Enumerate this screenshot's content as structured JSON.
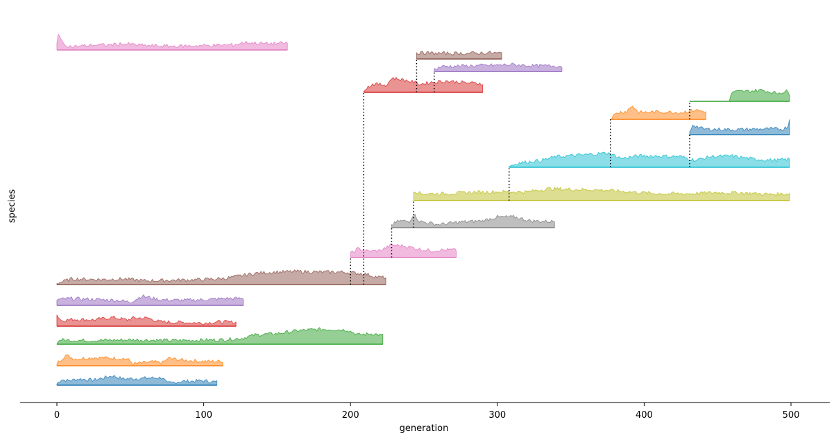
{
  "chart_data": {
    "type": "area",
    "title": "",
    "xlabel": "generation",
    "ylabel": "species",
    "xlim": [
      -25,
      525
    ],
    "x_ticks": [
      0,
      100,
      200,
      300,
      400,
      500
    ],
    "x_tick_labels": [
      "0",
      "100",
      "200",
      "300",
      "400",
      "500"
    ],
    "grid": false,
    "legend": "none",
    "series": [
      {
        "row": 0,
        "start": 0,
        "end": 109,
        "color": "#1f77b4",
        "profile": [
          [
            0,
            0.1
          ],
          [
            3,
            0.45
          ],
          [
            8,
            0.35
          ],
          [
            15,
            0.5
          ],
          [
            25,
            0.4
          ],
          [
            38,
            0.75
          ],
          [
            45,
            0.5
          ],
          [
            58,
            0.55
          ],
          [
            72,
            0.6
          ],
          [
            75,
            0.15
          ],
          [
            85,
            0.3
          ],
          [
            100,
            0.35
          ],
          [
            109,
            0.25
          ]
        ]
      },
      {
        "row": 1,
        "start": 0,
        "end": 113,
        "color": "#ff7f0e",
        "profile": [
          [
            0,
            0.2
          ],
          [
            6,
            0.85
          ],
          [
            12,
            0.55
          ],
          [
            25,
            0.65
          ],
          [
            40,
            0.6
          ],
          [
            48,
            0.55
          ],
          [
            52,
            0.15
          ],
          [
            65,
            0.3
          ],
          [
            72,
            0.25
          ],
          [
            76,
            0.6
          ],
          [
            85,
            0.45
          ],
          [
            100,
            0.35
          ],
          [
            113,
            0.35
          ]
        ]
      },
      {
        "row": 2,
        "start": 0,
        "end": 122,
        "color": "#d62728",
        "profile": [
          [
            0,
            0.9
          ],
          [
            3,
            0.45
          ],
          [
            12,
            0.55
          ],
          [
            25,
            0.5
          ],
          [
            38,
            0.7
          ],
          [
            48,
            0.5
          ],
          [
            52,
            0.65
          ],
          [
            62,
            0.65
          ],
          [
            70,
            0.35
          ],
          [
            85,
            0.3
          ],
          [
            100,
            0.25
          ],
          [
            112,
            0.35
          ],
          [
            122,
            0.3
          ]
        ]
      },
      {
        "row": 3,
        "start": 0,
        "end": 222,
        "color": "#2ca02c",
        "profile": [
          [
            0,
            0.05
          ],
          [
            2,
            0.35
          ],
          [
            20,
            0.3
          ],
          [
            50,
            0.35
          ],
          [
            80,
            0.3
          ],
          [
            110,
            0.35
          ],
          [
            125,
            0.45
          ],
          [
            135,
            0.75
          ],
          [
            150,
            0.85
          ],
          [
            165,
            1.1
          ],
          [
            180,
            1.2
          ],
          [
            198,
            1.15
          ],
          [
            205,
            0.75
          ],
          [
            215,
            0.85
          ],
          [
            222,
            0.7
          ]
        ]
      },
      {
        "row": 4,
        "start": 0,
        "end": 127,
        "color": "#9467bd",
        "profile": [
          [
            0,
            0.45
          ],
          [
            8,
            0.55
          ],
          [
            20,
            0.5
          ],
          [
            30,
            0.45
          ],
          [
            42,
            0.4
          ],
          [
            50,
            0.25
          ],
          [
            58,
            0.75
          ],
          [
            70,
            0.45
          ],
          [
            85,
            0.4
          ],
          [
            100,
            0.45
          ],
          [
            115,
            0.55
          ],
          [
            127,
            0.55
          ]
        ]
      },
      {
        "row": 5,
        "start": 0,
        "end": 224,
        "color": "#8c564b",
        "profile": [
          [
            0,
            0.1
          ],
          [
            10,
            0.45
          ],
          [
            30,
            0.4
          ],
          [
            45,
            0.45
          ],
          [
            60,
            0.3
          ],
          [
            80,
            0.35
          ],
          [
            100,
            0.4
          ],
          [
            115,
            0.5
          ],
          [
            125,
            0.7
          ],
          [
            135,
            0.9
          ],
          [
            150,
            1.0
          ],
          [
            165,
            1.05
          ],
          [
            180,
            1.0
          ],
          [
            195,
            1.0
          ],
          [
            210,
            0.85
          ],
          [
            218,
            0.6
          ],
          [
            224,
            0.55
          ]
        ]
      },
      {
        "row": 6,
        "start": 200,
        "end": 272,
        "color": "#e377c2",
        "profile": [
          [
            200,
            0.3
          ],
          [
            205,
            0.7
          ],
          [
            212,
            0.5
          ],
          [
            220,
            0.55
          ],
          [
            228,
            1.0
          ],
          [
            238,
            0.9
          ],
          [
            245,
            0.7
          ],
          [
            255,
            0.55
          ],
          [
            265,
            0.6
          ],
          [
            272,
            0.6
          ]
        ]
      },
      {
        "row": 7,
        "start": 228,
        "end": 339,
        "color": "#7f7f7f",
        "profile": [
          [
            228,
            0.2
          ],
          [
            233,
            0.55
          ],
          [
            240,
            0.5
          ],
          [
            243,
            1.1
          ],
          [
            247,
            0.5
          ],
          [
            260,
            0.25
          ],
          [
            275,
            0.45
          ],
          [
            290,
            0.55
          ],
          [
            300,
            0.85
          ],
          [
            312,
            0.85
          ],
          [
            322,
            0.55
          ],
          [
            332,
            0.5
          ],
          [
            339,
            0.5
          ]
        ]
      },
      {
        "row": 8,
        "start": 243,
        "end": 499,
        "color": "#bcbd22",
        "profile": [
          [
            243,
            0.8
          ],
          [
            248,
            0.55
          ],
          [
            265,
            0.55
          ],
          [
            280,
            0.65
          ],
          [
            300,
            0.7
          ],
          [
            320,
            0.7
          ],
          [
            335,
            0.95
          ],
          [
            350,
            0.9
          ],
          [
            370,
            0.85
          ],
          [
            390,
            0.7
          ],
          [
            410,
            0.55
          ],
          [
            430,
            0.55
          ],
          [
            450,
            0.65
          ],
          [
            470,
            0.6
          ],
          [
            485,
            0.5
          ],
          [
            499,
            0.55
          ]
        ]
      },
      {
        "row": 9,
        "start": 308,
        "end": 499,
        "color": "#17becf",
        "profile": [
          [
            308,
            0.1
          ],
          [
            315,
            0.35
          ],
          [
            330,
            0.55
          ],
          [
            340,
            0.85
          ],
          [
            360,
            1.0
          ],
          [
            375,
            1.15
          ],
          [
            385,
            0.7
          ],
          [
            395,
            0.9
          ],
          [
            410,
            0.9
          ],
          [
            425,
            0.85
          ],
          [
            435,
            0.55
          ],
          [
            445,
            0.85
          ],
          [
            460,
            0.9
          ],
          [
            475,
            0.65
          ],
          [
            490,
            0.55
          ],
          [
            499,
            0.65
          ]
        ]
      },
      {
        "row": 10,
        "start": 431,
        "end": 499,
        "color": "#1f77b4",
        "profile": [
          [
            431,
            0.15
          ],
          [
            433,
            0.8
          ],
          [
            440,
            0.45
          ],
          [
            460,
            0.4
          ],
          [
            480,
            0.45
          ],
          [
            495,
            0.45
          ],
          [
            498,
            0.7
          ],
          [
            499,
            1.2
          ]
        ]
      },
      {
        "row": 11,
        "start": 377,
        "end": 442,
        "color": "#ff7f0e",
        "profile": [
          [
            377,
            0.1
          ],
          [
            382,
            0.55
          ],
          [
            388,
            0.65
          ],
          [
            392,
            1.1
          ],
          [
            396,
            0.55
          ],
          [
            410,
            0.6
          ],
          [
            425,
            0.55
          ],
          [
            435,
            0.75
          ],
          [
            442,
            0.6
          ]
        ]
      },
      {
        "row": 12,
        "start": 431,
        "end": 499,
        "color": "#2ca02c",
        "profile": [
          [
            431,
            0.0
          ],
          [
            458,
            0.0
          ],
          [
            460,
            0.75
          ],
          [
            470,
            0.8
          ],
          [
            480,
            0.9
          ],
          [
            490,
            0.65
          ],
          [
            497,
            0.8
          ],
          [
            499,
            0.6
          ]
        ]
      },
      {
        "row": 13,
        "start": 209,
        "end": 290,
        "color": "#d62728",
        "profile": [
          [
            209,
            0.2
          ],
          [
            215,
            0.65
          ],
          [
            225,
            0.6
          ],
          [
            228,
            1.15
          ],
          [
            240,
            0.9
          ],
          [
            248,
            0.65
          ],
          [
            255,
            0.8
          ],
          [
            265,
            0.9
          ],
          [
            280,
            0.75
          ],
          [
            290,
            0.7
          ]
        ]
      },
      {
        "row": 14,
        "start": 257,
        "end": 344,
        "color": "#9467bd",
        "profile": [
          [
            257,
            0.15
          ],
          [
            262,
            0.4
          ],
          [
            280,
            0.45
          ],
          [
            300,
            0.5
          ],
          [
            310,
            0.55
          ],
          [
            325,
            0.45
          ],
          [
            340,
            0.45
          ],
          [
            344,
            0.4
          ]
        ]
      },
      {
        "row": 15,
        "start": 245,
        "end": 303,
        "color": "#8c564b",
        "profile": [
          [
            245,
            0.5
          ],
          [
            260,
            0.45
          ],
          [
            280,
            0.45
          ],
          [
            295,
            0.5
          ],
          [
            303,
            0.45
          ]
        ]
      },
      {
        "row": 16,
        "start": 0,
        "end": 157,
        "color": "#e377c2",
        "profile": [
          [
            0,
            0.5
          ],
          [
            1,
            1.4
          ],
          [
            4,
            0.5
          ],
          [
            10,
            0.25
          ],
          [
            25,
            0.4
          ],
          [
            35,
            0.4
          ],
          [
            45,
            0.5
          ],
          [
            60,
            0.35
          ],
          [
            80,
            0.3
          ],
          [
            100,
            0.35
          ],
          [
            120,
            0.4
          ],
          [
            128,
            0.6
          ],
          [
            135,
            0.55
          ],
          [
            145,
            0.5
          ],
          [
            157,
            0.55
          ]
        ]
      }
    ],
    "branches": [
      {
        "x": 200,
        "from_row": 5,
        "to_row": 6
      },
      {
        "x": 209,
        "from_row": 5,
        "to_row": 13
      },
      {
        "x": 228,
        "from_row": 6,
        "to_row": 7
      },
      {
        "x": 243,
        "from_row": 7,
        "to_row": 8
      },
      {
        "x": 308,
        "from_row": 8,
        "to_row": 9
      },
      {
        "x": 377,
        "from_row": 9,
        "to_row": 11
      },
      {
        "x": 431,
        "from_row": 9,
        "to_row": 10
      },
      {
        "x": 431,
        "from_row": 11,
        "to_row": 12
      },
      {
        "x": 245,
        "from_row": 13,
        "to_row": 15
      },
      {
        "x": 257,
        "from_row": 13,
        "to_row": 14
      }
    ]
  }
}
